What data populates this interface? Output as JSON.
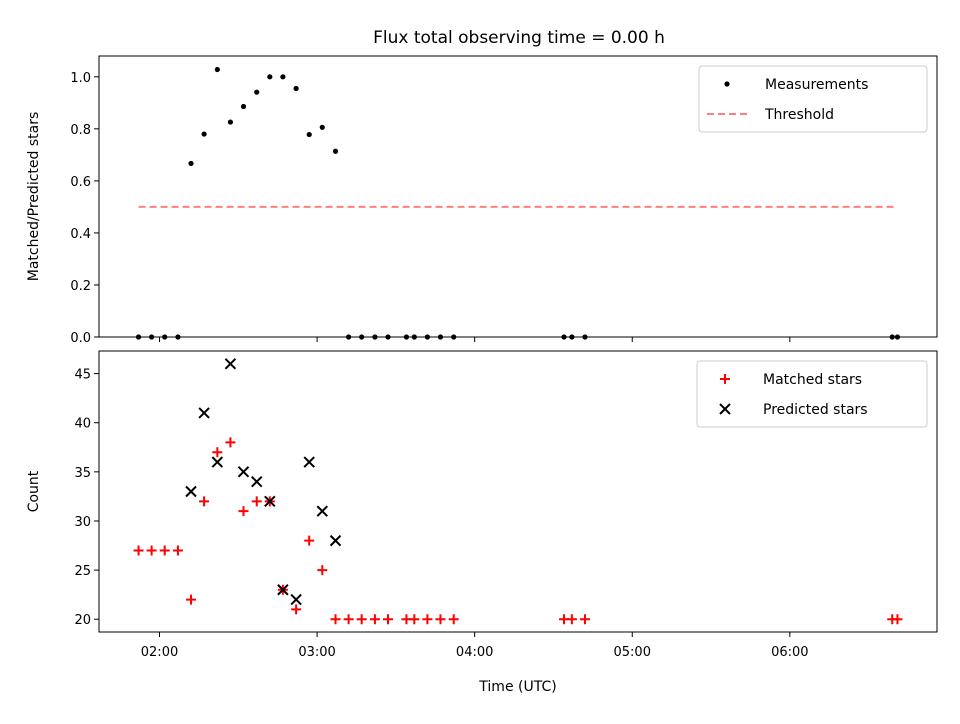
{
  "chart_data": [
    {
      "type": "scatter",
      "title": "Flux total observing time = 0.00 h",
      "ylabel": "Matched/Predicted stars",
      "xlabel": "",
      "x_unit": "hours UTC (decimal)",
      "xlim": [
        1.616,
        6.934
      ],
      "ylim": [
        0.0,
        1.08
      ],
      "yticks": [
        0.0,
        0.2,
        0.4,
        0.6,
        0.8,
        1.0
      ],
      "ytick_labels": [
        "0.0",
        "0.2",
        "0.4",
        "0.6",
        "0.8",
        "1.0"
      ],
      "legend_position": "top-right",
      "series": [
        {
          "name": "Measurements",
          "marker": "dot",
          "color": "#000000",
          "points": [
            [
              1.867,
              0.0
            ],
            [
              1.95,
              0.0
            ],
            [
              2.033,
              0.0
            ],
            [
              2.117,
              0.0
            ],
            [
              2.2,
              0.667
            ],
            [
              2.283,
              0.78
            ],
            [
              2.367,
              1.028
            ],
            [
              2.45,
              0.826
            ],
            [
              2.533,
              0.886
            ],
            [
              2.617,
              0.941
            ],
            [
              2.7,
              1.0
            ],
            [
              2.783,
              1.0
            ],
            [
              2.867,
              0.955
            ],
            [
              2.95,
              0.778
            ],
            [
              3.033,
              0.806
            ],
            [
              3.117,
              0.714
            ],
            [
              3.2,
              0.0
            ],
            [
              3.283,
              0.0
            ],
            [
              3.367,
              0.0
            ],
            [
              3.45,
              0.0
            ],
            [
              3.567,
              0.0
            ],
            [
              3.617,
              0.0
            ],
            [
              3.7,
              0.0
            ],
            [
              3.783,
              0.0
            ],
            [
              3.867,
              0.0
            ],
            [
              4.567,
              0.0
            ],
            [
              4.617,
              0.0
            ],
            [
              4.7,
              0.0
            ],
            [
              6.65,
              0.0
            ],
            [
              6.683,
              0.0
            ]
          ]
        },
        {
          "name": "Threshold",
          "style": "dashed-line",
          "color": "#ff7f7f",
          "points": [
            [
              1.867,
              0.5
            ],
            [
              6.683,
              0.5
            ]
          ]
        }
      ]
    },
    {
      "type": "scatter",
      "title": "",
      "ylabel": "Count",
      "xlabel": "Time (UTC)",
      "x_unit": "hours UTC (decimal)",
      "xlim": [
        1.616,
        6.934
      ],
      "ylim": [
        18.7,
        47.3
      ],
      "yticks": [
        20,
        25,
        30,
        35,
        40,
        45
      ],
      "ytick_labels": [
        "20",
        "25",
        "30",
        "35",
        "40",
        "45"
      ],
      "xticks": [
        2,
        3,
        4,
        5,
        6
      ],
      "xtick_labels": [
        "02:00",
        "03:00",
        "04:00",
        "05:00",
        "06:00"
      ],
      "legend_position": "top-right",
      "series": [
        {
          "name": "Matched stars",
          "marker": "plus",
          "color": "#ff0000",
          "points": [
            [
              1.867,
              27
            ],
            [
              1.95,
              27
            ],
            [
              2.033,
              27
            ],
            [
              2.117,
              27
            ],
            [
              2.2,
              22
            ],
            [
              2.283,
              32
            ],
            [
              2.367,
              37
            ],
            [
              2.45,
              38
            ],
            [
              2.533,
              31
            ],
            [
              2.617,
              32
            ],
            [
              2.7,
              32
            ],
            [
              2.783,
              23
            ],
            [
              2.867,
              21
            ],
            [
              2.95,
              28
            ],
            [
              3.033,
              25
            ],
            [
              3.117,
              20
            ],
            [
              3.2,
              20
            ],
            [
              3.283,
              20
            ],
            [
              3.367,
              20
            ],
            [
              3.45,
              20
            ],
            [
              3.567,
              20
            ],
            [
              3.617,
              20
            ],
            [
              3.7,
              20
            ],
            [
              3.783,
              20
            ],
            [
              3.867,
              20
            ],
            [
              4.567,
              20
            ],
            [
              4.617,
              20
            ],
            [
              4.7,
              20
            ],
            [
              6.65,
              20
            ],
            [
              6.683,
              20
            ]
          ]
        },
        {
          "name": "Predicted stars",
          "marker": "x",
          "color": "#000000",
          "points": [
            [
              2.2,
              33
            ],
            [
              2.283,
              41
            ],
            [
              2.367,
              36
            ],
            [
              2.45,
              46
            ],
            [
              2.533,
              35
            ],
            [
              2.617,
              34
            ],
            [
              2.7,
              32
            ],
            [
              2.783,
              23
            ],
            [
              2.867,
              22
            ],
            [
              2.95,
              36
            ],
            [
              3.033,
              31
            ],
            [
              3.117,
              28
            ]
          ]
        }
      ]
    }
  ]
}
